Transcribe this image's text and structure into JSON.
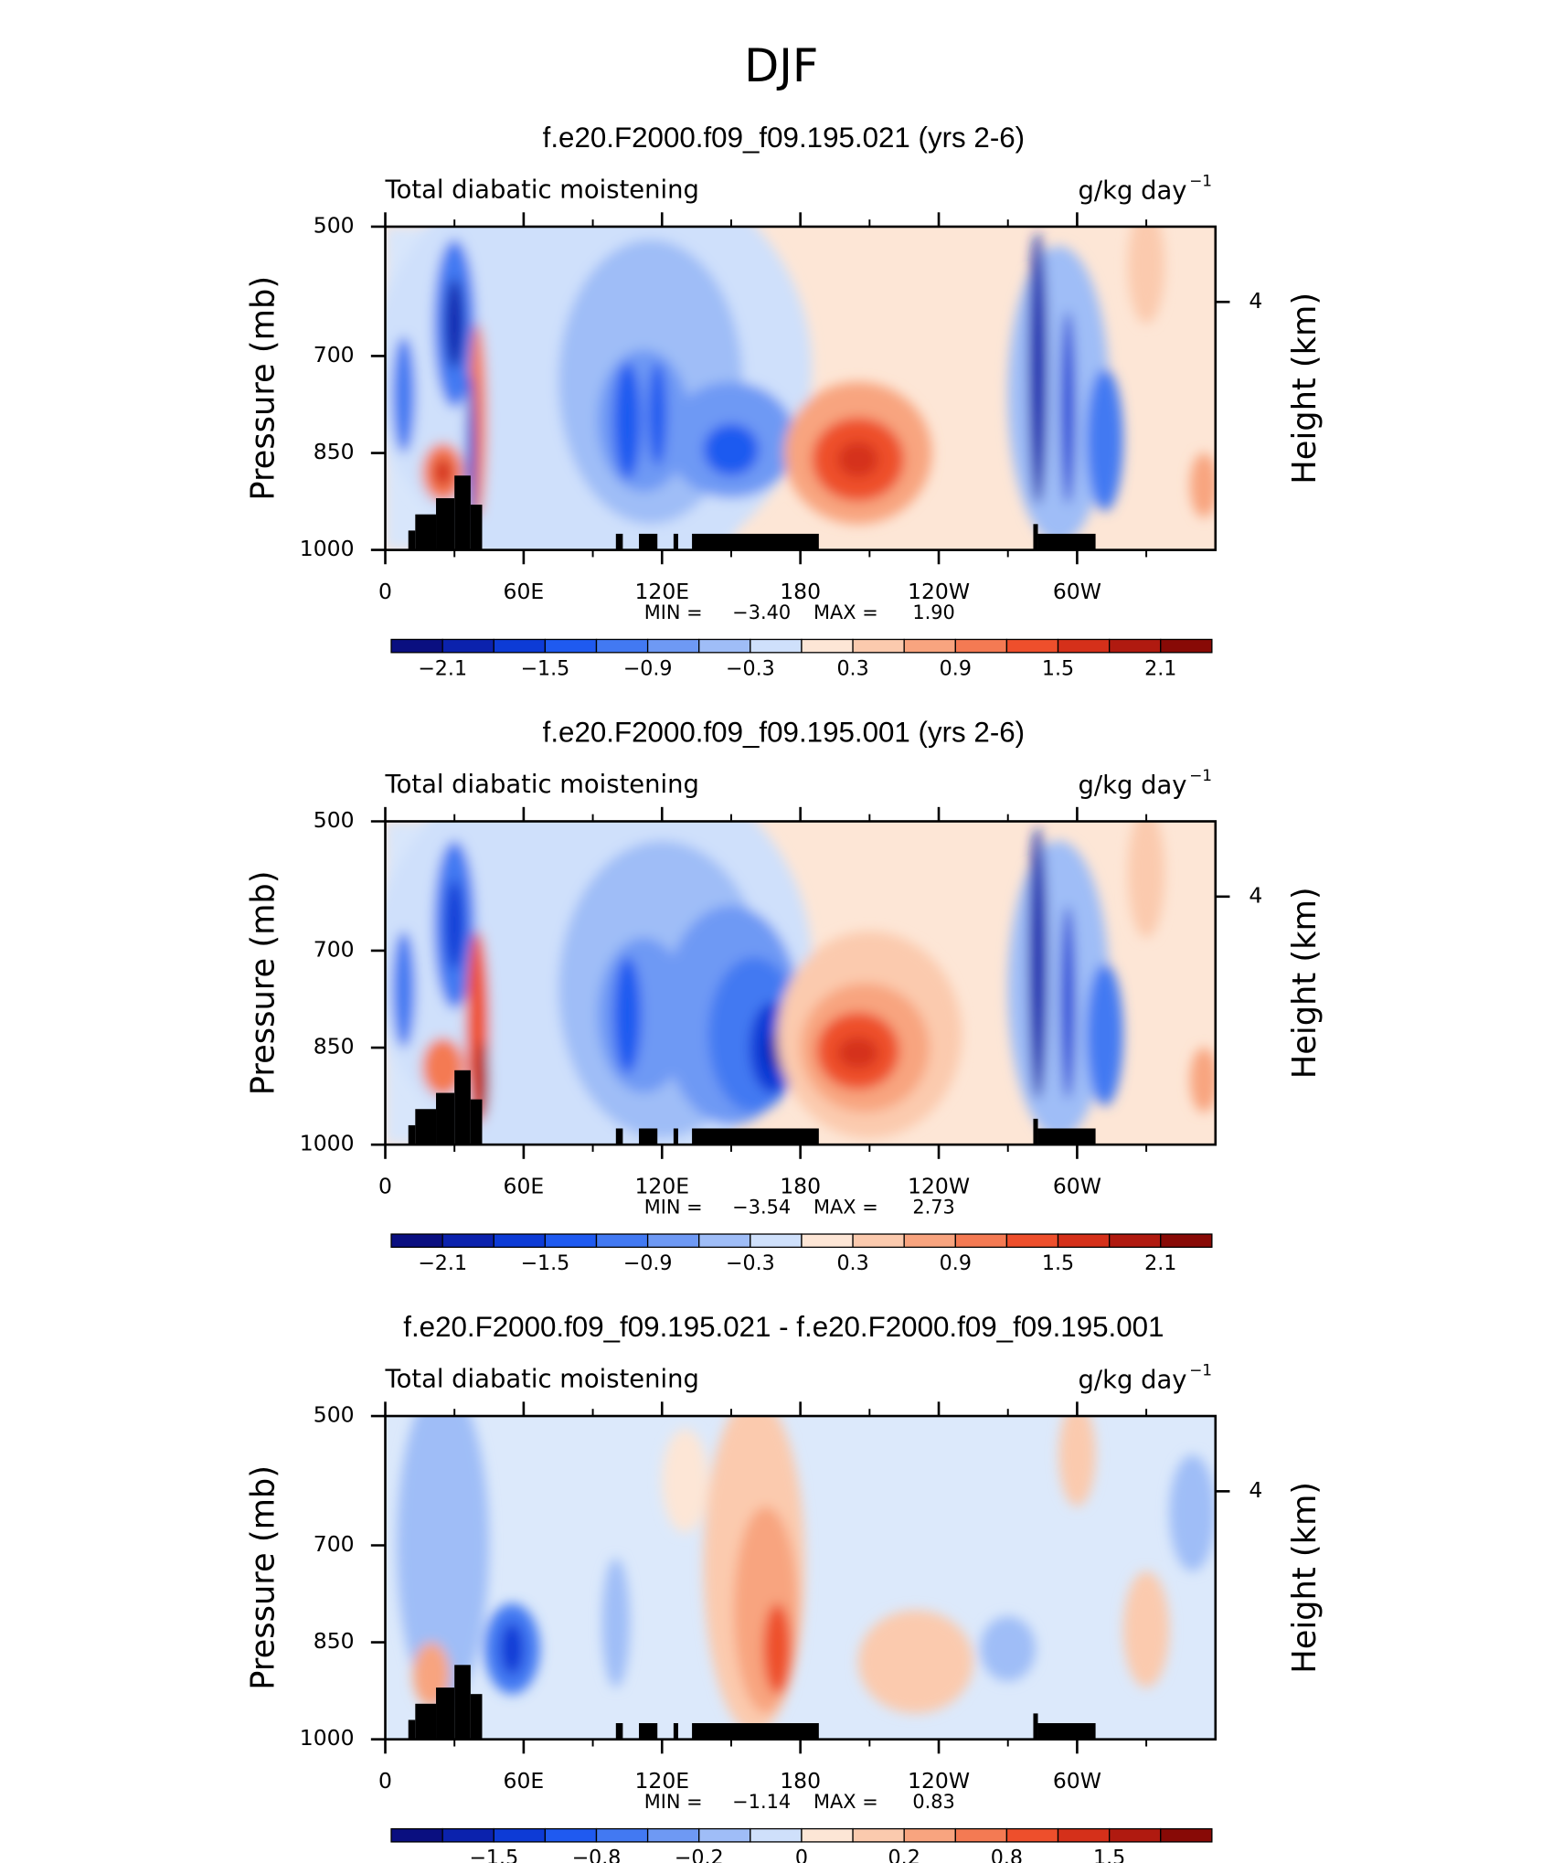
{
  "title": "DJF",
  "chart_data": [
    {
      "type": "contour",
      "title": "f.e20.F2000.f09_f09.195.021 (yrs 2-6)",
      "subtitle": "Total diabatic moistening",
      "units": "g/kg day",
      "units_exponent": "−1",
      "y_label": "Pressure (mb)",
      "y2_label": "Height (km)",
      "xlim": [
        0,
        360
      ],
      "xticks": [
        0,
        {
          "value": 60,
          "label": "60E"
        },
        {
          "value": 120,
          "label": "120E"
        },
        180,
        {
          "value": 240,
          "label": "120W"
        },
        {
          "value": 300,
          "label": "60W"
        }
      ],
      "ylim": [
        1000,
        500
      ],
      "yticks": [
        500,
        700,
        850,
        1000
      ],
      "y2ticks": [
        4
      ],
      "stats": {
        "names": [
          "MIN =",
          "MAX ="
        ],
        "values": [
          -3.4,
          1.9
        ],
        "value_labels": [
          "−3.40",
          "1.90"
        ]
      },
      "colorbar": {
        "colors": [
          "#0a0f80",
          "#0b22ad",
          "#0d3bd6",
          "#1f5af0",
          "#4279f2",
          "#6e99f4",
          "#9fbdf7",
          "#cfe0fb",
          "#fde6d6",
          "#fbcaae",
          "#f8a47f",
          "#f47a53",
          "#ee4f2c",
          "#d5301a",
          "#b01a10",
          "#880a06"
        ],
        "ticks": [
          {
            "value": -2.1,
            "label": "−2.1"
          },
          {
            "value": -1.5,
            "label": "−1.5"
          },
          {
            "value": -0.9,
            "label": "−0.9"
          },
          {
            "value": -0.3,
            "label": "−0.3"
          },
          0.3,
          0.9,
          1.5,
          2.1
        ]
      }
    },
    {
      "type": "contour",
      "title": "f.e20.F2000.f09_f09.195.001 (yrs 2-6)",
      "subtitle": "Total diabatic moistening",
      "units": "g/kg day",
      "units_exponent": "−1",
      "y_label": "Pressure (mb)",
      "y2_label": "Height (km)",
      "xlim": [
        0,
        360
      ],
      "xticks": [
        0,
        {
          "value": 60,
          "label": "60E"
        },
        {
          "value": 120,
          "label": "120E"
        },
        180,
        {
          "value": 240,
          "label": "120W"
        },
        {
          "value": 300,
          "label": "60W"
        }
      ],
      "ylim": [
        1000,
        500
      ],
      "yticks": [
        500,
        700,
        850,
        1000
      ],
      "y2ticks": [
        4
      ],
      "stats": {
        "names": [
          "MIN =",
          "MAX ="
        ],
        "values": [
          -3.54,
          2.73
        ],
        "value_labels": [
          "−3.54",
          "2.73"
        ]
      },
      "colorbar": {
        "colors": [
          "#0a0f80",
          "#0b22ad",
          "#0d3bd6",
          "#1f5af0",
          "#4279f2",
          "#6e99f4",
          "#9fbdf7",
          "#cfe0fb",
          "#fde6d6",
          "#fbcaae",
          "#f8a47f",
          "#f47a53",
          "#ee4f2c",
          "#d5301a",
          "#b01a10",
          "#880a06"
        ],
        "ticks": [
          {
            "value": -2.1,
            "label": "−2.1"
          },
          {
            "value": -1.5,
            "label": "−1.5"
          },
          {
            "value": -0.9,
            "label": "−0.9"
          },
          {
            "value": -0.3,
            "label": "−0.3"
          },
          0.3,
          0.9,
          1.5,
          2.1
        ]
      }
    },
    {
      "type": "contour",
      "title": "f.e20.F2000.f09_f09.195.021 - f.e20.F2000.f09_f09.195.001",
      "subtitle": "Total diabatic moistening",
      "units": "g/kg day",
      "units_exponent": "−1",
      "y_label": "Pressure (mb)",
      "y2_label": "Height (km)",
      "xlim": [
        0,
        360
      ],
      "xticks": [
        0,
        {
          "value": 60,
          "label": "60E"
        },
        {
          "value": 120,
          "label": "120E"
        },
        180,
        {
          "value": 240,
          "label": "120W"
        },
        {
          "value": 300,
          "label": "60W"
        }
      ],
      "ylim": [
        1000,
        500
      ],
      "yticks": [
        500,
        700,
        850,
        1000
      ],
      "y2ticks": [
        4
      ],
      "stats": {
        "names": [
          "MIN =",
          "MAX ="
        ],
        "values": [
          -1.14,
          0.83
        ],
        "value_labels": [
          "−1.14",
          "0.83"
        ]
      },
      "colorbar": {
        "colors": [
          "#0a0f80",
          "#0b22ad",
          "#0d3bd6",
          "#1f5af0",
          "#4279f2",
          "#6e99f4",
          "#9fbdf7",
          "#cfe0fb",
          "#fde6d6",
          "#fbcaae",
          "#f8a47f",
          "#f47a53",
          "#ee4f2c",
          "#d5301a",
          "#b01a10",
          "#880a06"
        ],
        "ticks": [
          {
            "value": -1.5,
            "label": "−1.5"
          },
          {
            "value": -0.8,
            "label": "−0.8"
          },
          {
            "value": -0.2,
            "label": "−0.2"
          },
          0,
          0.2,
          0.8,
          1.5
        ]
      }
    }
  ]
}
